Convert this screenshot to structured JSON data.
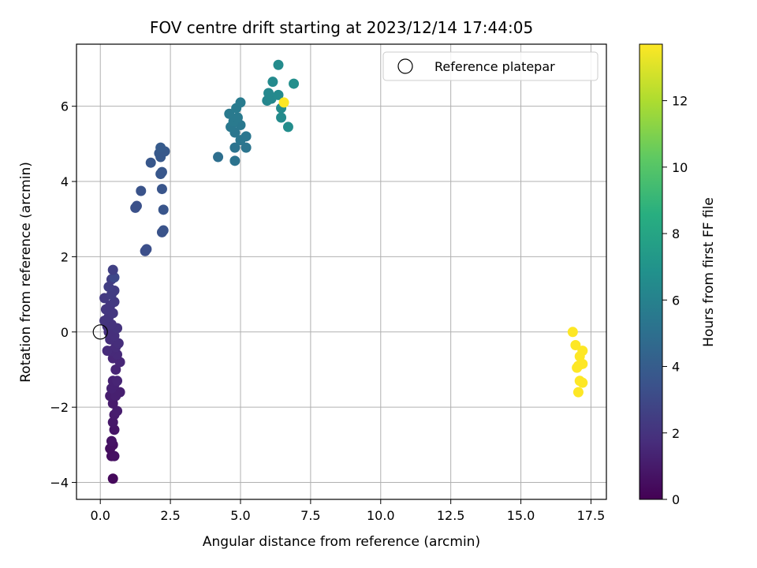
{
  "chart_data": {
    "type": "scatter",
    "title": "FOV centre drift starting at 2023/12/14 17:44:05",
    "xlabel": "Angular distance from reference (arcmin)",
    "ylabel": "Rotation from reference (arcmin)",
    "xlim": [
      -0.85,
      18.05
    ],
    "ylim": [
      -4.45,
      7.65
    ],
    "xticks": [
      0.0,
      2.5,
      5.0,
      7.5,
      10.0,
      12.5,
      15.0,
      17.5
    ],
    "xtick_labels": [
      "0.0",
      "2.5",
      "5.0",
      "7.5",
      "10.0",
      "12.5",
      "15.0",
      "17.5"
    ],
    "yticks": [
      -4,
      -2,
      0,
      2,
      4,
      6
    ],
    "ytick_labels": [
      "−4",
      "−2",
      "0",
      "2",
      "4",
      "6"
    ],
    "grid": true,
    "legend": {
      "placement": "top-right",
      "entries": [
        "Reference platepar"
      ]
    },
    "reference_point": {
      "x": 0.0,
      "y": 0.0
    },
    "colorbar": {
      "label": "Hours from first FF file",
      "range": [
        0,
        13.7
      ],
      "ticks": [
        0,
        2,
        4,
        6,
        8,
        10,
        12
      ],
      "tick_labels": [
        "0",
        "2",
        "4",
        "6",
        "8",
        "10",
        "12"
      ],
      "colormap": "viridis"
    },
    "series": [
      {
        "points": [
          {
            "x": 0.45,
            "y": -3.9,
            "h": 0.3
          },
          {
            "x": 0.4,
            "y": -3.3,
            "h": 0.5
          },
          {
            "x": 0.5,
            "y": -3.3,
            "h": 0.6
          },
          {
            "x": 0.35,
            "y": -3.1,
            "h": 0.5
          },
          {
            "x": 0.45,
            "y": -3.0,
            "h": 0.6
          },
          {
            "x": 0.4,
            "y": -2.9,
            "h": 0.7
          },
          {
            "x": 0.5,
            "y": -2.6,
            "h": 0.8
          },
          {
            "x": 0.45,
            "y": -2.4,
            "h": 0.9
          },
          {
            "x": 0.5,
            "y": -2.2,
            "h": 1.0
          },
          {
            "x": 0.6,
            "y": -2.1,
            "h": 1.1
          },
          {
            "x": 0.45,
            "y": -1.9,
            "h": 1.0
          },
          {
            "x": 0.35,
            "y": -1.7,
            "h": 1.1
          },
          {
            "x": 0.55,
            "y": -1.7,
            "h": 1.2
          },
          {
            "x": 0.7,
            "y": -1.6,
            "h": 1.2
          },
          {
            "x": 0.4,
            "y": -1.5,
            "h": 1.3
          },
          {
            "x": 0.5,
            "y": -1.4,
            "h": 1.3
          },
          {
            "x": 0.45,
            "y": -1.3,
            "h": 1.3
          },
          {
            "x": 0.6,
            "y": -1.3,
            "h": 1.4
          },
          {
            "x": 0.55,
            "y": -1.0,
            "h": 1.4
          },
          {
            "x": 0.7,
            "y": -0.8,
            "h": 1.5
          },
          {
            "x": 0.45,
            "y": -0.7,
            "h": 1.5
          },
          {
            "x": 0.6,
            "y": -0.6,
            "h": 1.6
          },
          {
            "x": 0.4,
            "y": -0.5,
            "h": 1.6
          },
          {
            "x": 0.25,
            "y": -0.5,
            "h": 1.7
          },
          {
            "x": 0.55,
            "y": -0.4,
            "h": 1.7
          },
          {
            "x": 0.65,
            "y": -0.3,
            "h": 1.8
          },
          {
            "x": 0.35,
            "y": -0.2,
            "h": 1.8
          },
          {
            "x": 0.5,
            "y": -0.1,
            "h": 1.9
          },
          {
            "x": 0.3,
            "y": 0.0,
            "h": 1.9
          },
          {
            "x": 0.6,
            "y": 0.1,
            "h": 2.0
          },
          {
            "x": 0.25,
            "y": 0.15,
            "h": 2.0
          },
          {
            "x": 0.4,
            "y": 0.2,
            "h": 2.0
          },
          {
            "x": 0.15,
            "y": 0.3,
            "h": 2.1
          },
          {
            "x": 0.3,
            "y": 0.4,
            "h": 2.1
          },
          {
            "x": 0.45,
            "y": 0.5,
            "h": 2.2
          },
          {
            "x": 0.2,
            "y": 0.6,
            "h": 2.2
          },
          {
            "x": 0.35,
            "y": 0.7,
            "h": 2.2
          },
          {
            "x": 0.5,
            "y": 0.8,
            "h": 2.3
          },
          {
            "x": 0.15,
            "y": 0.9,
            "h": 2.3
          },
          {
            "x": 0.4,
            "y": 1.0,
            "h": 2.4
          },
          {
            "x": 0.5,
            "y": 1.1,
            "h": 2.4
          },
          {
            "x": 0.3,
            "y": 1.2,
            "h": 2.5
          },
          {
            "x": 0.4,
            "y": 1.4,
            "h": 2.5
          },
          {
            "x": 0.5,
            "y": 1.45,
            "h": 3.0
          },
          {
            "x": 0.45,
            "y": 1.65,
            "h": 2.6
          },
          {
            "x": 1.6,
            "y": 2.15,
            "h": 3.3
          },
          {
            "x": 1.65,
            "y": 2.2,
            "h": 3.3
          },
          {
            "x": 2.2,
            "y": 2.65,
            "h": 3.5
          },
          {
            "x": 2.25,
            "y": 2.7,
            "h": 3.5
          },
          {
            "x": 2.25,
            "y": 3.25,
            "h": 3.6
          },
          {
            "x": 1.25,
            "y": 3.3,
            "h": 3.4
          },
          {
            "x": 1.3,
            "y": 3.35,
            "h": 3.4
          },
          {
            "x": 1.45,
            "y": 3.75,
            "h": 3.5
          },
          {
            "x": 2.2,
            "y": 3.8,
            "h": 3.6
          },
          {
            "x": 2.15,
            "y": 4.2,
            "h": 3.7
          },
          {
            "x": 2.2,
            "y": 4.25,
            "h": 3.7
          },
          {
            "x": 1.8,
            "y": 4.5,
            "h": 3.7
          },
          {
            "x": 2.15,
            "y": 4.65,
            "h": 3.8
          },
          {
            "x": 2.1,
            "y": 4.75,
            "h": 3.8
          },
          {
            "x": 2.3,
            "y": 4.8,
            "h": 3.8
          },
          {
            "x": 2.15,
            "y": 4.9,
            "h": 3.9
          },
          {
            "x": 4.2,
            "y": 4.65,
            "h": 5.0
          },
          {
            "x": 4.8,
            "y": 4.55,
            "h": 5.2
          },
          {
            "x": 4.8,
            "y": 4.9,
            "h": 5.2
          },
          {
            "x": 5.2,
            "y": 4.9,
            "h": 5.3
          },
          {
            "x": 5.0,
            "y": 5.1,
            "h": 5.4
          },
          {
            "x": 5.2,
            "y": 5.2,
            "h": 5.4
          },
          {
            "x": 4.8,
            "y": 5.3,
            "h": 5.4
          },
          {
            "x": 4.65,
            "y": 5.45,
            "h": 5.5
          },
          {
            "x": 5.0,
            "y": 5.5,
            "h": 5.5
          },
          {
            "x": 4.75,
            "y": 5.6,
            "h": 5.6
          },
          {
            "x": 4.9,
            "y": 5.7,
            "h": 5.6
          },
          {
            "x": 4.6,
            "y": 5.8,
            "h": 5.6
          },
          {
            "x": 4.85,
            "y": 5.95,
            "h": 5.7
          },
          {
            "x": 5.0,
            "y": 6.1,
            "h": 5.7
          },
          {
            "x": 5.95,
            "y": 6.15,
            "h": 6.3
          },
          {
            "x": 6.1,
            "y": 6.2,
            "h": 6.4
          },
          {
            "x": 6.0,
            "y": 6.35,
            "h": 6.4
          },
          {
            "x": 6.35,
            "y": 6.3,
            "h": 6.5
          },
          {
            "x": 6.45,
            "y": 5.95,
            "h": 6.6
          },
          {
            "x": 6.45,
            "y": 5.7,
            "h": 6.6
          },
          {
            "x": 6.7,
            "y": 5.45,
            "h": 6.7
          },
          {
            "x": 6.15,
            "y": 6.65,
            "h": 6.5
          },
          {
            "x": 6.9,
            "y": 6.6,
            "h": 6.8
          },
          {
            "x": 6.35,
            "y": 7.1,
            "h": 6.6
          },
          {
            "x": 6.55,
            "y": 6.1,
            "h": 13.7
          },
          {
            "x": 16.85,
            "y": 0.0,
            "h": 13.7
          },
          {
            "x": 16.95,
            "y": -0.35,
            "h": 13.7
          },
          {
            "x": 17.2,
            "y": -0.5,
            "h": 13.7
          },
          {
            "x": 17.1,
            "y": -0.65,
            "h": 13.7
          },
          {
            "x": 17.2,
            "y": -0.85,
            "h": 13.7
          },
          {
            "x": 17.05,
            "y": -0.9,
            "h": 13.7
          },
          {
            "x": 17.0,
            "y": -0.95,
            "h": 13.7
          },
          {
            "x": 17.1,
            "y": -1.3,
            "h": 13.7
          },
          {
            "x": 17.2,
            "y": -1.35,
            "h": 13.7
          },
          {
            "x": 17.05,
            "y": -1.6,
            "h": 13.7
          }
        ]
      }
    ]
  }
}
